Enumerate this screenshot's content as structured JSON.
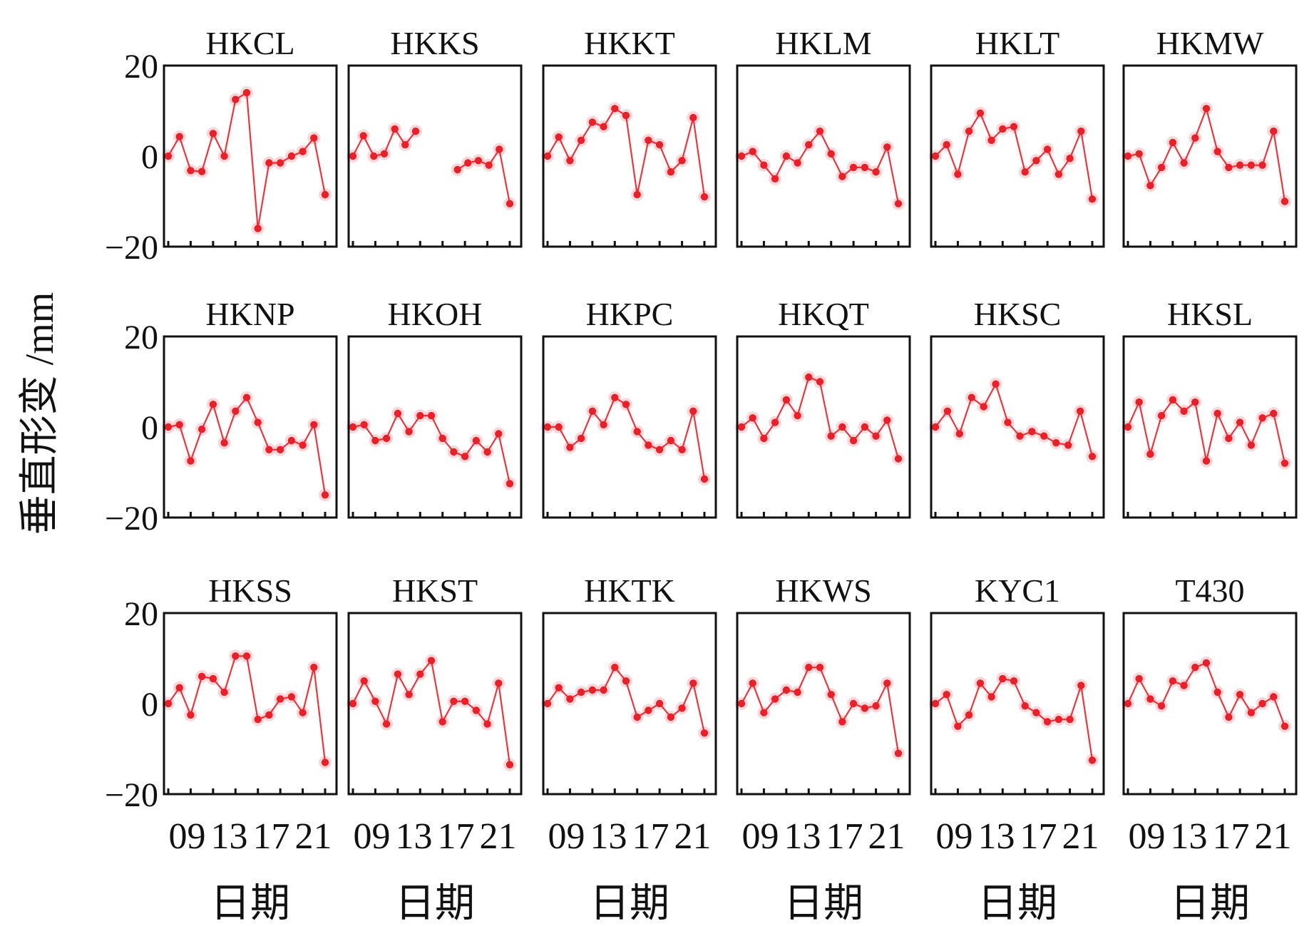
{
  "chart_data": {
    "type": "line",
    "ylabel": "垂直形变 /mm",
    "xlabel": "日期",
    "ylim": [
      -20,
      20
    ],
    "yticks": [
      "20",
      "0",
      "−20"
    ],
    "xtick_labels": [
      "09",
      "13",
      "17",
      "21"
    ],
    "color": "#e8202a",
    "panels": [
      {
        "title": "HKCL",
        "values": [
          0,
          4.3,
          -3.2,
          -3.4,
          5,
          0,
          12.5,
          14,
          -16,
          -1.5,
          -1.5,
          0,
          1,
          4,
          -8.5
        ]
      },
      {
        "title": "HKKS",
        "values": [
          0,
          4.5,
          0,
          0.5,
          6,
          2.5,
          5.5,
          null,
          null,
          null,
          -3,
          -1.5,
          -1,
          -2,
          1.5,
          -10.5
        ]
      },
      {
        "title": "HKKT",
        "values": [
          0,
          4.2,
          -1,
          3.5,
          7.5,
          6.5,
          10.5,
          9,
          -8.5,
          3.5,
          2.5,
          -3.5,
          -1,
          8.5,
          -9
        ]
      },
      {
        "title": "HKLM",
        "values": [
          0,
          1,
          -2,
          -5,
          0,
          -1.5,
          2.5,
          5.5,
          0.5,
          -4.5,
          -2.5,
          -2.5,
          -3.5,
          2,
          -10.5
        ]
      },
      {
        "title": "HKLT",
        "values": [
          0,
          2.5,
          -4,
          5.5,
          9.5,
          3.5,
          6,
          6.5,
          -3.5,
          -1,
          1.5,
          -4,
          -0.5,
          5.5,
          -9.5
        ]
      },
      {
        "title": "HKMW",
        "values": [
          0,
          0.5,
          -6.5,
          -2.5,
          3,
          -1.5,
          4,
          10.5,
          1,
          -2.5,
          -2,
          -2,
          -2,
          5.5,
          -10
        ]
      },
      {
        "title": "HKNP",
        "values": [
          0,
          0.5,
          -7.5,
          -0.5,
          5,
          -3.5,
          3.5,
          6.5,
          1,
          -5,
          -5,
          -3,
          -4,
          0.5,
          -15
        ]
      },
      {
        "title": "HKOH",
        "values": [
          0,
          0.5,
          -3,
          -2.5,
          3,
          -1,
          2.5,
          2.5,
          -2.5,
          -5.5,
          -6.5,
          -3,
          -5.5,
          -1.5,
          -12.5
        ]
      },
      {
        "title": "HKPC",
        "values": [
          0,
          0,
          -4.5,
          -2.5,
          3.5,
          0.5,
          6.5,
          5,
          -1,
          -4,
          -5,
          -3,
          -5,
          3.5,
          -11.5
        ]
      },
      {
        "title": "HKQT",
        "values": [
          0,
          2,
          -2.5,
          1,
          6,
          2.5,
          11,
          10,
          -2,
          0,
          -3,
          0,
          -2,
          1.5,
          -7
        ]
      },
      {
        "title": "HKSC",
        "values": [
          0,
          3.5,
          -1.5,
          6.5,
          4.5,
          9.5,
          1,
          -2,
          -1,
          -2,
          -3.5,
          -4,
          3.5,
          -6.5
        ]
      },
      {
        "title": "HKSL",
        "values": [
          0,
          5.5,
          -6,
          2.5,
          6,
          3.5,
          5.5,
          -7.5,
          3,
          -2.5,
          1,
          -4,
          2,
          3,
          -8
        ]
      },
      {
        "title": "HKSS",
        "values": [
          0,
          3.5,
          -2.5,
          6,
          5.5,
          2.5,
          10.5,
          10.5,
          -3.5,
          -2.5,
          1,
          1.5,
          -2,
          8,
          -13
        ]
      },
      {
        "title": "HKST",
        "values": [
          0,
          5,
          0.5,
          -4.5,
          6.5,
          2,
          6.5,
          9.5,
          -4,
          0.5,
          0.5,
          -1.5,
          -4.5,
          4.5,
          -13.5
        ]
      },
      {
        "title": "HKTK",
        "values": [
          0,
          3.5,
          1,
          2.5,
          3,
          3,
          8,
          5,
          -3,
          -1.5,
          0,
          -3,
          -1,
          4.5,
          -6.5
        ]
      },
      {
        "title": "HKWS",
        "values": [
          0,
          4.5,
          -2,
          1,
          3,
          2.5,
          8,
          8,
          2,
          -4,
          0,
          -1,
          -0.5,
          4.5,
          -11
        ]
      },
      {
        "title": "KYC1",
        "values": [
          0,
          2,
          -5,
          -2.5,
          4.5,
          1.5,
          5.5,
          5,
          -0.5,
          -2,
          -4,
          -3.5,
          -3.5,
          4,
          -12.5
        ]
      },
      {
        "title": "T430",
        "values": [
          0,
          5.5,
          1,
          -0.5,
          5,
          4,
          8,
          9,
          2.5,
          -3,
          2,
          -2,
          0,
          1.5,
          -5
        ]
      }
    ]
  }
}
